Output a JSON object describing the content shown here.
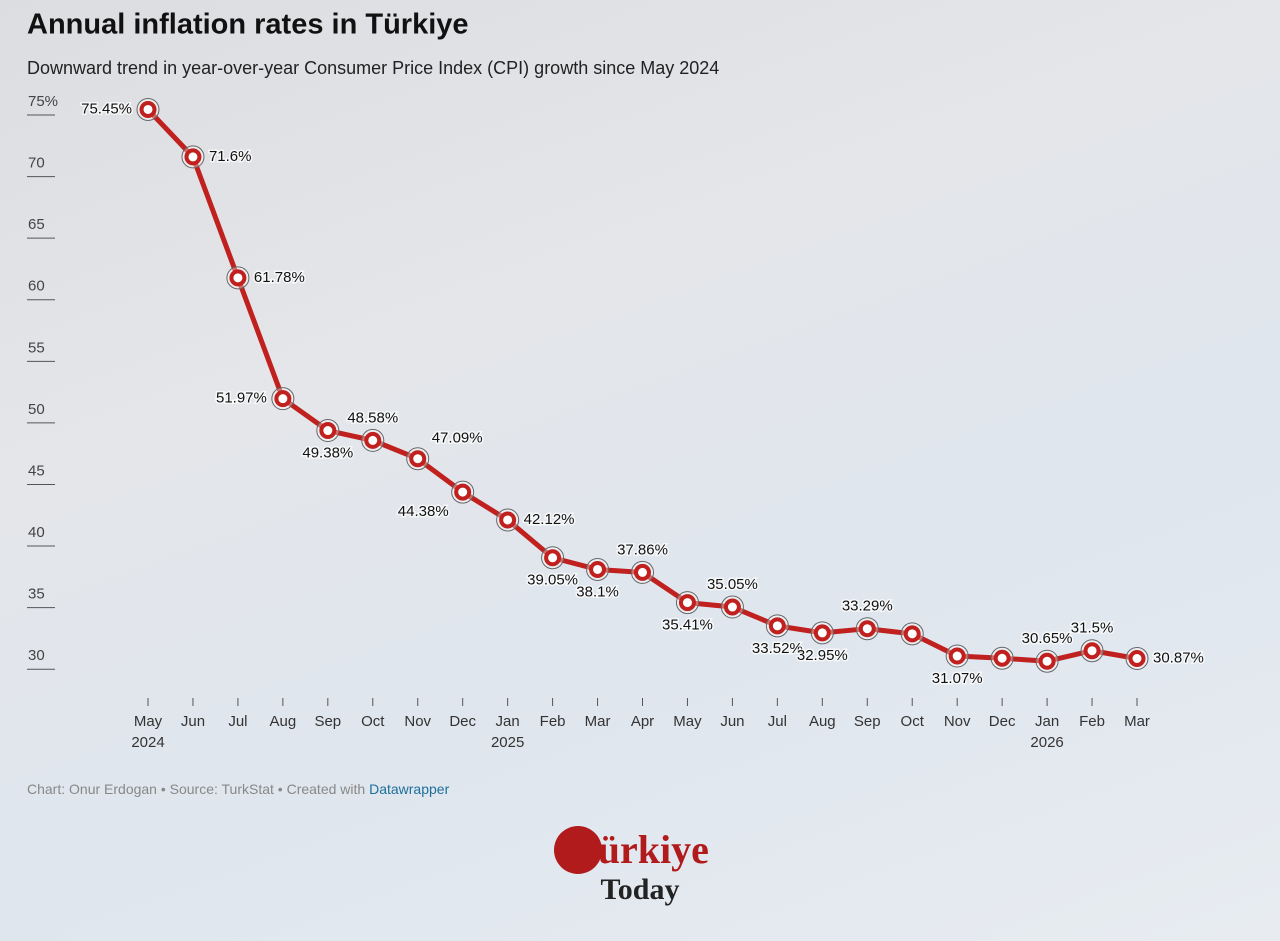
{
  "chart_data": {
    "type": "line",
    "title": "Annual inflation rates in Türkiye",
    "subtitle": "Downward trend in year-over-year Consumer Price Index (CPI) growth since May 2024",
    "categories": [
      "May 2024",
      "Jun",
      "Jul",
      "Aug",
      "Sep",
      "Oct",
      "Nov",
      "Dec",
      "Jan 2025",
      "Feb",
      "Mar",
      "Apr",
      "May",
      "Jun",
      "Jul",
      "Aug",
      "Sep",
      "Oct",
      "Nov",
      "Dec",
      "Jan 2026",
      "Feb",
      "Mar"
    ],
    "series": [
      {
        "name": "Annual inflation",
        "color": "#c0201e",
        "values": [
          75.45,
          71.6,
          61.78,
          51.97,
          49.38,
          48.58,
          47.09,
          44.38,
          42.12,
          39.05,
          38.1,
          37.86,
          35.41,
          35.05,
          33.52,
          32.95,
          33.29,
          32.87,
          31.07,
          30.89,
          30.65,
          31.5,
          30.87
        ],
        "value_labels": [
          "75.45%",
          "71.6%",
          "61.78%",
          "51.97%",
          "49.38%",
          "48.58%",
          "47.09%",
          "44.38%",
          "42.12%",
          "39.05%",
          "38.1%",
          "37.86%",
          "35.41%",
          "35.05%",
          "33.52%",
          "32.95%",
          "33.29%",
          null,
          "31.07%",
          null,
          "30.65%",
          "31.5%",
          "30.87%"
        ]
      }
    ],
    "ylim": [
      27.5,
      76
    ],
    "yticks": [
      30,
      35,
      40,
      45,
      50,
      55,
      60,
      65,
      70,
      {
        "value": 75,
        "label": "75%"
      }
    ],
    "source": "Chart: Onur Erdogan • Source: TurkStat • Created with",
    "source_link": "Datawrapper",
    "logo": [
      "Türkiye",
      "Today"
    ]
  }
}
